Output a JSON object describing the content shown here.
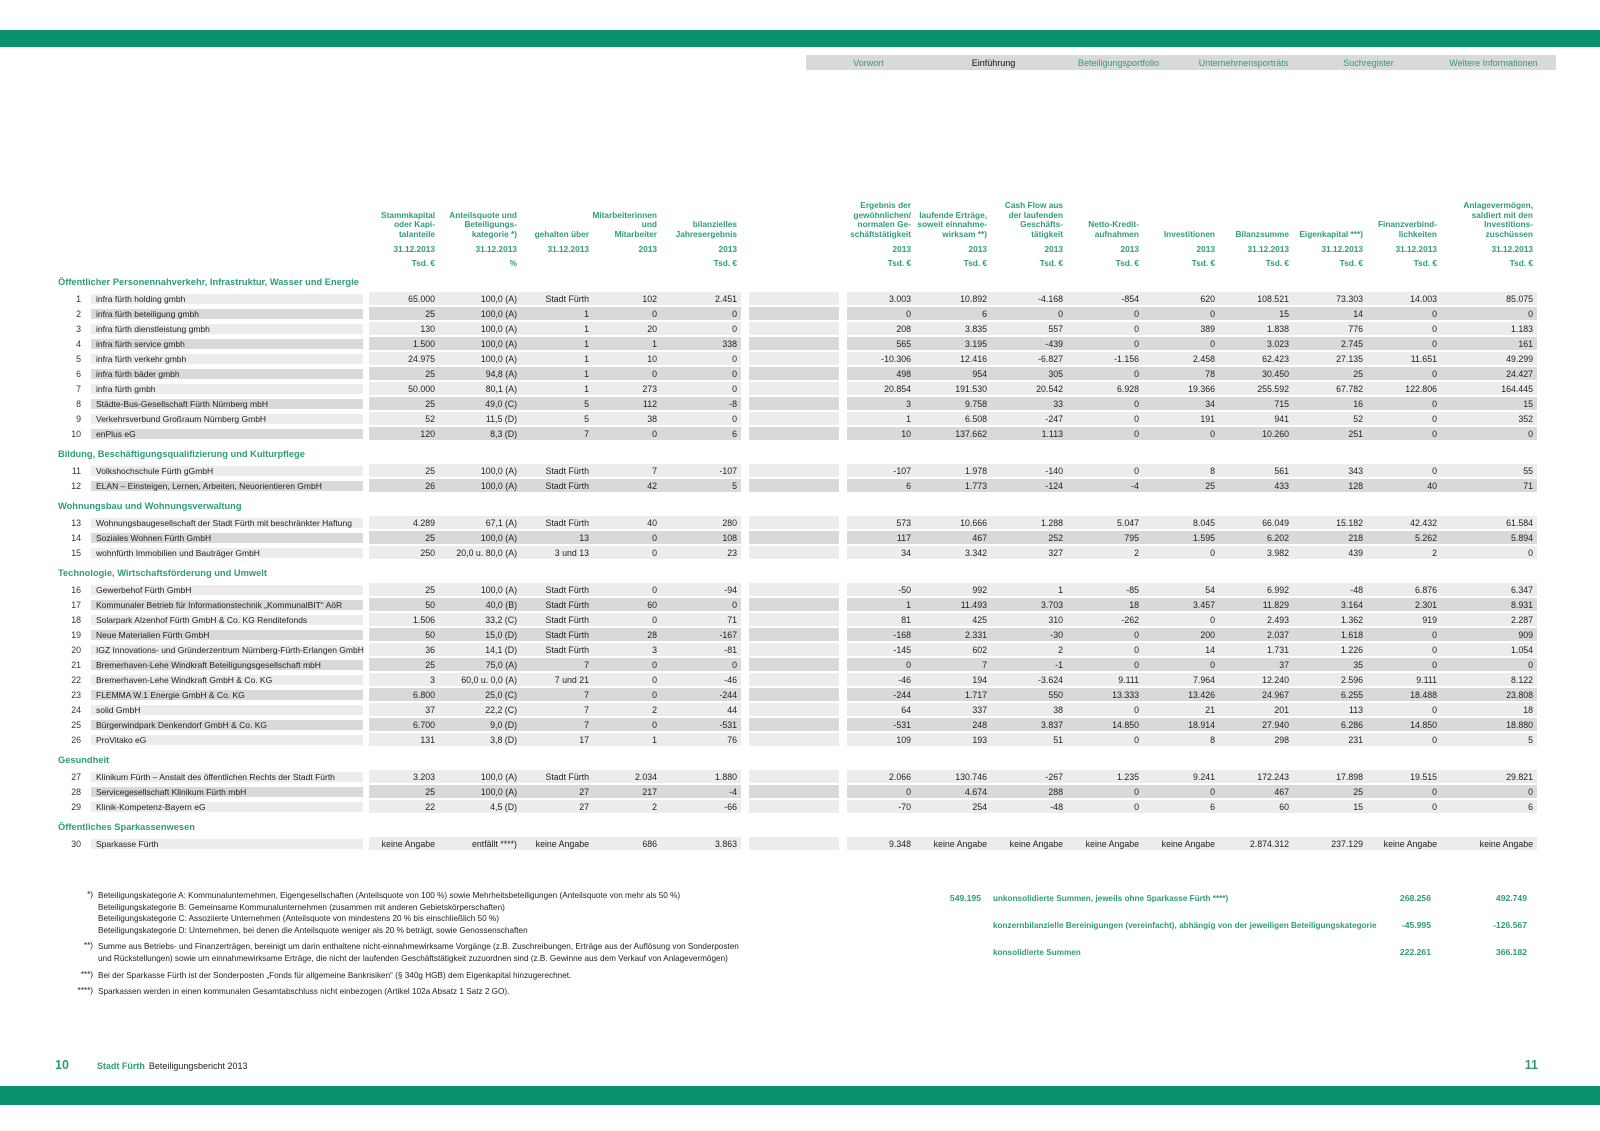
{
  "colors": {
    "accent": "#2E9C7A",
    "bar_green": "#0A926C",
    "nav_bg": "#D9D9D9",
    "row_light": "#ECECEC",
    "row_dark": "#D9D9D9"
  },
  "nav": {
    "items": [
      {
        "label": "Vorwort",
        "active": false
      },
      {
        "label": "Einführung",
        "active": true
      },
      {
        "label": "Beteiligungsportfolio",
        "active": false
      },
      {
        "label": "Unternehmensporträts",
        "active": false
      },
      {
        "label": "Suchregister",
        "active": false
      },
      {
        "label": "Weitere Informationen",
        "active": false
      }
    ]
  },
  "table": {
    "columns": [
      {
        "lines": [
          "Stammkapital",
          "oder Kapi-",
          "talanteile"
        ],
        "date": "31.12.2013",
        "unit": "Tsd. €"
      },
      {
        "lines": [
          "Anteilsquote und",
          "Beteiligungs-",
          "kategorie *)"
        ],
        "date": "31.12.2013",
        "unit": "%"
      },
      {
        "lines": [
          "gehalten über"
        ],
        "date": "31.12.2013",
        "unit": ""
      },
      {
        "lines": [
          "Mitarbeiterinnen",
          "und",
          "Mitarbeiter"
        ],
        "date": "2013",
        "unit": ""
      },
      {
        "lines": [
          "bilanzielles",
          "Jahresergebnis"
        ],
        "date": "2013",
        "unit": "Tsd. €"
      },
      {
        "lines": [
          "Ergebnis der",
          "gewöhnlichen/",
          "normalen Ge-",
          "schäftstätigkeit"
        ],
        "date": "2013",
        "unit": "Tsd. €"
      },
      {
        "lines": [
          "laufende  Erträge,",
          "soweit einnahme-",
          "wirksam **)"
        ],
        "date": "2013",
        "unit": "Tsd. €"
      },
      {
        "lines": [
          "Cash Flow aus",
          "der laufenden",
          "Geschäfts-",
          "tätigkeit"
        ],
        "date": "2013",
        "unit": "Tsd. €"
      },
      {
        "lines": [
          "Netto-Kredit-",
          "aufnahmen"
        ],
        "date": "2013",
        "unit": "Tsd. €"
      },
      {
        "lines": [
          "Investitionen"
        ],
        "date": "2013",
        "unit": "Tsd. €"
      },
      {
        "lines": [
          "Bilanzsumme"
        ],
        "date": "31.12.2013",
        "unit": "Tsd. €"
      },
      {
        "lines": [
          "Eigenkapital ***)"
        ],
        "date": "31.12.2013",
        "unit": "Tsd. €"
      },
      {
        "lines": [
          "Finanzverbind-",
          "lichkeiten"
        ],
        "date": "31.12.2013",
        "unit": "Tsd. €"
      },
      {
        "lines": [
          "Anlagevermögen,",
          "saldiert mit den",
          "Investitions-",
          "zuschüssen"
        ],
        "date": "31.12.2013",
        "unit": "Tsd. €"
      }
    ],
    "sections": [
      {
        "title": "Öffentlicher Personennahverkehr, Infrastruktur, Wasser und Energie",
        "rows": [
          {
            "num": "1",
            "name": "infra fürth holding gmbh",
            "values": [
              "65.000",
              "100,0 (A)",
              "Stadt Fürth",
              "102",
              "2.451",
              "3.003",
              "10.892",
              "-4.168",
              "-854",
              "620",
              "108.521",
              "73.303",
              "14.003",
              "85.075"
            ]
          },
          {
            "num": "2",
            "name": "infra fürth beteiligung gmbh",
            "values": [
              "25",
              "100,0 (A)",
              "1",
              "0",
              "0",
              "0",
              "6",
              "0",
              "0",
              "0",
              "15",
              "14",
              "0",
              "0"
            ]
          },
          {
            "num": "3",
            "name": "infra fürth dienstleistung gmbh",
            "values": [
              "130",
              "100,0 (A)",
              "1",
              "20",
              "0",
              "208",
              "3.835",
              "557",
              "0",
              "389",
              "1.838",
              "776",
              "0",
              "1.183"
            ]
          },
          {
            "num": "4",
            "name": "infra fürth service gmbh",
            "values": [
              "1.500",
              "100,0 (A)",
              "1",
              "1",
              "338",
              "565",
              "3.195",
              "-439",
              "0",
              "0",
              "3.023",
              "2.745",
              "0",
              "161"
            ]
          },
          {
            "num": "5",
            "name": "infra fürth verkehr gmbh",
            "values": [
              "24.975",
              "100,0 (A)",
              "1",
              "10",
              "0",
              "-10.306",
              "12.416",
              "-6.827",
              "-1.156",
              "2.458",
              "62.423",
              "27.135",
              "11.651",
              "49.299"
            ]
          },
          {
            "num": "6",
            "name": "infra fürth bäder gmbh",
            "values": [
              "25",
              "94,8 (A)",
              "1",
              "0",
              "0",
              "498",
              "954",
              "305",
              "0",
              "78",
              "30.450",
              "25",
              "0",
              "24.427"
            ]
          },
          {
            "num": "7",
            "name": "infra fürth gmbh",
            "values": [
              "50.000",
              "80,1 (A)",
              "1",
              "273",
              "0",
              "20.854",
              "191.530",
              "20.542",
              "6.928",
              "19.366",
              "255.592",
              "67.782",
              "122.806",
              "164.445"
            ]
          },
          {
            "num": "8",
            "name": "Städte-Bus-Gesellschaft Fürth Nürnberg mbH",
            "values": [
              "25",
              "49,0 (C)",
              "5",
              "112",
              "-8",
              "3",
              "9.758",
              "33",
              "0",
              "34",
              "715",
              "16",
              "0",
              "15"
            ]
          },
          {
            "num": "9",
            "name": "Verkehrsverbund Großraum Nürnberg GmbH",
            "values": [
              "52",
              "11,5 (D)",
              "5",
              "38",
              "0",
              "1",
              "6.508",
              "-247",
              "0",
              "191",
              "941",
              "52",
              "0",
              "352"
            ]
          },
          {
            "num": "10",
            "name": "enPlus eG",
            "values": [
              "120",
              "8,3 (D)",
              "7",
              "0",
              "6",
              "10",
              "137.662",
              "1.113",
              "0",
              "0",
              "10.260",
              "251",
              "0",
              "0"
            ]
          }
        ]
      },
      {
        "title": "Bildung, Beschäftigungsqualifizierung und Kulturpflege",
        "rows": [
          {
            "num": "11",
            "name": "Volkshochschule Fürth gGmbH",
            "values": [
              "25",
              "100,0 (A)",
              "Stadt Fürth",
              "7",
              "-107",
              "-107",
              "1.978",
              "-140",
              "0",
              "8",
              "561",
              "343",
              "0",
              "55"
            ]
          },
          {
            "num": "12",
            "name": "ELAN – Einsteigen, Lernen, Arbeiten, Neuorientieren GmbH",
            "values": [
              "26",
              "100,0 (A)",
              "Stadt Fürth",
              "42",
              "5",
              "6",
              "1.773",
              "-124",
              "-4",
              "25",
              "433",
              "128",
              "40",
              "71"
            ]
          }
        ]
      },
      {
        "title": "Wohnungsbau und Wohnungsverwaltung",
        "rows": [
          {
            "num": "13",
            "name": "Wohnungsbaugesellschaft der Stadt Fürth mit beschränkter Haftung",
            "values": [
              "4.289",
              "67,1 (A)",
              "Stadt Fürth",
              "40",
              "280",
              "573",
              "10.666",
              "1.288",
              "5.047",
              "8.045",
              "66.049",
              "15.182",
              "42.432",
              "61.584"
            ]
          },
          {
            "num": "14",
            "name": "Soziales Wohnen Fürth GmbH",
            "values": [
              "25",
              "100,0 (A)",
              "13",
              "0",
              "108",
              "117",
              "467",
              "252",
              "795",
              "1.595",
              "6.202",
              "218",
              "5.262",
              "5.894"
            ]
          },
          {
            "num": "15",
            "name": "wohnfürth Immobilien und Bauträger GmbH",
            "values": [
              "250",
              "20,0 u. 80,0 (A)",
              "3 und 13",
              "0",
              "23",
              "34",
              "3.342",
              "327",
              "2",
              "0",
              "3.982",
              "439",
              "2",
              "0"
            ]
          }
        ]
      },
      {
        "title": "Technologie, Wirtschaftsförderung und Umwelt",
        "rows": [
          {
            "num": "16",
            "name": "Gewerbehof Fürth GmbH",
            "values": [
              "25",
              "100,0 (A)",
              "Stadt Fürth",
              "0",
              "-94",
              "-50",
              "992",
              "1",
              "-85",
              "54",
              "6.992",
              "-48",
              "6.876",
              "6.347"
            ]
          },
          {
            "num": "17",
            "name": "Kommunaler Betrieb für Informationstechnik „KommunalBIT“ AöR",
            "values": [
              "50",
              "40,0 (B)",
              "Stadt Fürth",
              "60",
              "0",
              "1",
              "11.493",
              "3.703",
              "18",
              "3.457",
              "11.829",
              "3.164",
              "2.301",
              "8.931"
            ]
          },
          {
            "num": "18",
            "name": "Solarpark Alzenhof Fürth GmbH & Co. KG Renditefonds",
            "values": [
              "1.506",
              "33,2 (C)",
              "Stadt Fürth",
              "0",
              "71",
              "81",
              "425",
              "310",
              "-262",
              "0",
              "2.493",
              "1.362",
              "919",
              "2.287"
            ]
          },
          {
            "num": "19",
            "name": "Neue Materialien Fürth GmbH",
            "values": [
              "50",
              "15,0 (D)",
              "Stadt Fürth",
              "28",
              "-167",
              "-168",
              "2.331",
              "-30",
              "0",
              "200",
              "2.037",
              "1.618",
              "0",
              "909"
            ]
          },
          {
            "num": "20",
            "name": "IGZ Innovations- und Gründerzentrum Nürnberg-Fürth-Erlangen GmbH",
            "values": [
              "36",
              "14,1 (D)",
              "Stadt Fürth",
              "3",
              "-81",
              "-145",
              "602",
              "2",
              "0",
              "14",
              "1.731",
              "1.226",
              "0",
              "1.054"
            ]
          },
          {
            "num": "21",
            "name": "Bremerhaven-Lehe Windkraft Beteiligungsgesellschaft mbH",
            "values": [
              "25",
              "75,0 (A)",
              "7",
              "0",
              "0",
              "0",
              "7",
              "-1",
              "0",
              "0",
              "37",
              "35",
              "0",
              "0"
            ]
          },
          {
            "num": "22",
            "name": "Bremerhaven-Lehe Windkraft GmbH & Co. KG",
            "values": [
              "3",
              "60,0 u. 0,0 (A)",
              "7 und 21",
              "0",
              "-46",
              "-46",
              "194",
              "-3.624",
              "9.111",
              "7.964",
              "12.240",
              "2.596",
              "9.111",
              "8.122"
            ]
          },
          {
            "num": "23",
            "name": "FLEMMA W.1 Energie GmbH & Co. KG",
            "values": [
              "6.800",
              "25,0 (C)",
              "7",
              "0",
              "-244",
              "-244",
              "1.717",
              "550",
              "13.333",
              "13.426",
              "24.967",
              "6.255",
              "18.488",
              "23.808"
            ]
          },
          {
            "num": "24",
            "name": "solid GmbH",
            "values": [
              "37",
              "22,2 (C)",
              "7",
              "2",
              "44",
              "64",
              "337",
              "38",
              "0",
              "21",
              "201",
              "113",
              "0",
              "18"
            ]
          },
          {
            "num": "25",
            "name": "Bürgerwindpark Denkendorf GmbH & Co. KG",
            "values": [
              "6.700",
              "9,0 (D)",
              "7",
              "0",
              "-531",
              "-531",
              "248",
              "3.837",
              "14.850",
              "18.914",
              "27.940",
              "6.286",
              "14.850",
              "18.880"
            ]
          },
          {
            "num": "26",
            "name": "ProVitako eG",
            "values": [
              "131",
              "3,8 (D)",
              "17",
              "1",
              "76",
              "109",
              "193",
              "51",
              "0",
              "8",
              "298",
              "231",
              "0",
              "5"
            ]
          }
        ]
      },
      {
        "title": "Gesundheit",
        "rows": [
          {
            "num": "27",
            "name": "Klinikum Fürth – Anstalt des öffentlichen Rechts der Stadt Fürth",
            "values": [
              "3.203",
              "100,0 (A)",
              "Stadt Fürth",
              "2.034",
              "1.880",
              "2.066",
              "130.746",
              "-267",
              "1.235",
              "9.241",
              "172.243",
              "17.898",
              "19.515",
              "29.821"
            ]
          },
          {
            "num": "28",
            "name": "Servicegesellschaft Klinikum Fürth mbH",
            "values": [
              "25",
              "100,0 (A)",
              "27",
              "217",
              "-4",
              "0",
              "4.674",
              "288",
              "0",
              "0",
              "467",
              "25",
              "0",
              "0"
            ]
          },
          {
            "num": "29",
            "name": "Klinik-Kompetenz-Bayern eG",
            "values": [
              "22",
              "4,5 (D)",
              "27",
              "2",
              "-66",
              "-70",
              "254",
              "-48",
              "0",
              "6",
              "60",
              "15",
              "0",
              "6"
            ]
          }
        ]
      },
      {
        "title": "Öffentliches Sparkassenwesen",
        "rows": [
          {
            "num": "30",
            "name": "Sparkasse Fürth",
            "values": [
              "keine Angabe",
              "entfällt ****)",
              "keine Angabe",
              "686",
              "3.863",
              "9.348",
              "keine Angabe",
              "keine Angabe",
              "keine Angabe",
              "keine Angabe",
              "2.874.312",
              "237.129",
              "keine Angabe",
              "keine Angabe"
            ]
          }
        ]
      }
    ]
  },
  "summary": {
    "rows": [
      {
        "col7": "549.195",
        "label": "unkonsolidierte Summen, jeweils ohne Sparkasse Fürth ****)",
        "col13": "268.256",
        "col14": "492.749"
      },
      {
        "col7": "",
        "label": "konzernbilanzielle Bereinigungen (vereinfacht), abhängig von der jeweiligen Beteiligungskategorie",
        "col13": "-45.995",
        "col14": "-126.567"
      },
      {
        "col7": "",
        "label": "konsolidierte Summen",
        "col13": "222.261",
        "col14": "366.182"
      }
    ]
  },
  "footnotes": [
    {
      "marker": "*)",
      "lines": [
        "Beteiligungskategorie A: Kommunalunternehmen, Eigengesellschaften (Anteilsquote von 100 %) sowie Mehrheitsbeteiligungen (Anteilsquote von mehr als 50 %)",
        "Beteiligungskategorie B: Gemeinsame Kommunalunternehmen (zusammen mit anderen Gebietskörperschaften)",
        "Beteiligungskategorie C: Assoziierte Unternehmen (Anteilsquote von mindestens 20 % bis einschließlich 50 %)",
        "Beteiligungskategorie D: Unternehmen, bei denen die Anteilsquote weniger als 20 % beträgt, sowie Genossenschaften"
      ]
    },
    {
      "marker": "**)",
      "lines": [
        "Summe aus Betriebs- und Finanzerträgen, bereinigt um darin enthaltene nicht-einnahmewirksame Vorgänge (z.B. Zuschreibungen, Erträge aus der Auflösung von Sonderposten",
        "und Rückstellungen) sowie um einnahmewirksame Erträge, die nicht der laufenden Geschäftstätigkeit zuzuordnen sind (z.B. Gewinne aus dem Verkauf von Anlagevermögen)"
      ]
    },
    {
      "marker": "***)",
      "lines": [
        "Bei der Sparkasse Fürth ist der Sonderposten „Fonds für allgemeine Bankrisiken“ (§ 340g HGB) dem Eigenkapital hinzugerechnet."
      ]
    },
    {
      "marker": "****)",
      "lines": [
        "Sparkassen werden in einen kommunalen Gesamtabschluss nicht einbezogen (Artikel 102a Absatz 1 Satz 2 GO)."
      ]
    }
  ],
  "footer": {
    "page_left": "10",
    "brand": "Stadt Fürth",
    "doc_title": "Beteiligungsbericht 2013",
    "page_right": "11"
  }
}
